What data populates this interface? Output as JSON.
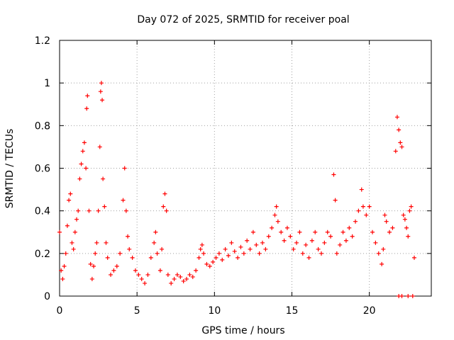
{
  "chart_data": {
    "type": "scatter",
    "title": "Day 072 of 2025, SRMTID for receiver poal",
    "xlabel": "GPS time / hours",
    "ylabel": "SRMTID / TECUs",
    "xlim": [
      0,
      24
    ],
    "ylim": [
      0,
      1.2
    ],
    "xticks": [
      0,
      5,
      10,
      15,
      20
    ],
    "yticks": [
      0,
      0.2,
      0.4,
      0.6,
      0.8,
      1,
      1.2
    ],
    "ytick_labels": [
      "0",
      "0.2",
      "0.4",
      "0.6",
      "0.8",
      "1",
      "1.2"
    ],
    "grid": true,
    "marker": "+",
    "marker_color": "#ff0000",
    "series": [
      {
        "name": "SRMTID",
        "points": [
          [
            0.0,
            0.3
          ],
          [
            0.1,
            0.12
          ],
          [
            0.2,
            0.08
          ],
          [
            0.3,
            0.14
          ],
          [
            0.4,
            0.2
          ],
          [
            0.5,
            0.33
          ],
          [
            0.6,
            0.45
          ],
          [
            0.7,
            0.48
          ],
          [
            0.8,
            0.25
          ],
          [
            0.9,
            0.22
          ],
          [
            1.0,
            0.3
          ],
          [
            1.1,
            0.36
          ],
          [
            1.2,
            0.4
          ],
          [
            1.3,
            0.55
          ],
          [
            1.4,
            0.62
          ],
          [
            1.5,
            0.68
          ],
          [
            1.6,
            0.72
          ],
          [
            1.7,
            0.6
          ],
          [
            1.75,
            0.88
          ],
          [
            1.8,
            0.94
          ],
          [
            1.9,
            0.4
          ],
          [
            2.0,
            0.15
          ],
          [
            2.1,
            0.08
          ],
          [
            2.2,
            0.14
          ],
          [
            2.3,
            0.2
          ],
          [
            2.4,
            0.25
          ],
          [
            2.5,
            0.4
          ],
          [
            2.6,
            0.7
          ],
          [
            2.65,
            0.96
          ],
          [
            2.7,
            1.0
          ],
          [
            2.75,
            0.92
          ],
          [
            2.8,
            0.55
          ],
          [
            2.9,
            0.42
          ],
          [
            3.0,
            0.25
          ],
          [
            3.1,
            0.18
          ],
          [
            3.3,
            0.1
          ],
          [
            3.5,
            0.12
          ],
          [
            3.7,
            0.14
          ],
          [
            3.9,
            0.2
          ],
          [
            4.1,
            0.45
          ],
          [
            4.2,
            0.6
          ],
          [
            4.3,
            0.4
          ],
          [
            4.4,
            0.28
          ],
          [
            4.5,
            0.22
          ],
          [
            4.7,
            0.18
          ],
          [
            4.9,
            0.12
          ],
          [
            5.1,
            0.1
          ],
          [
            5.3,
            0.08
          ],
          [
            5.5,
            0.06
          ],
          [
            5.7,
            0.1
          ],
          [
            5.9,
            0.18
          ],
          [
            6.1,
            0.25
          ],
          [
            6.2,
            0.3
          ],
          [
            6.3,
            0.2
          ],
          [
            6.5,
            0.12
          ],
          [
            6.6,
            0.22
          ],
          [
            6.7,
            0.42
          ],
          [
            6.8,
            0.48
          ],
          [
            6.9,
            0.4
          ],
          [
            7.0,
            0.1
          ],
          [
            7.2,
            0.06
          ],
          [
            7.4,
            0.08
          ],
          [
            7.6,
            0.1
          ],
          [
            7.8,
            0.09
          ],
          [
            8.0,
            0.07
          ],
          [
            8.2,
            0.08
          ],
          [
            8.4,
            0.1
          ],
          [
            8.6,
            0.09
          ],
          [
            8.8,
            0.12
          ],
          [
            9.0,
            0.18
          ],
          [
            9.1,
            0.22
          ],
          [
            9.2,
            0.24
          ],
          [
            9.3,
            0.2
          ],
          [
            9.5,
            0.15
          ],
          [
            9.7,
            0.14
          ],
          [
            9.9,
            0.16
          ],
          [
            10.1,
            0.18
          ],
          [
            10.3,
            0.2
          ],
          [
            10.5,
            0.17
          ],
          [
            10.7,
            0.22
          ],
          [
            10.9,
            0.19
          ],
          [
            11.1,
            0.25
          ],
          [
            11.3,
            0.21
          ],
          [
            11.5,
            0.18
          ],
          [
            11.7,
            0.23
          ],
          [
            11.9,
            0.2
          ],
          [
            12.1,
            0.26
          ],
          [
            12.3,
            0.22
          ],
          [
            12.5,
            0.3
          ],
          [
            12.7,
            0.24
          ],
          [
            12.9,
            0.2
          ],
          [
            13.1,
            0.25
          ],
          [
            13.3,
            0.22
          ],
          [
            13.5,
            0.28
          ],
          [
            13.7,
            0.32
          ],
          [
            13.9,
            0.38
          ],
          [
            14.0,
            0.42
          ],
          [
            14.1,
            0.35
          ],
          [
            14.3,
            0.3
          ],
          [
            14.5,
            0.26
          ],
          [
            14.7,
            0.32
          ],
          [
            14.9,
            0.28
          ],
          [
            15.1,
            0.22
          ],
          [
            15.3,
            0.25
          ],
          [
            15.5,
            0.3
          ],
          [
            15.7,
            0.2
          ],
          [
            15.9,
            0.24
          ],
          [
            16.1,
            0.18
          ],
          [
            16.3,
            0.26
          ],
          [
            16.5,
            0.3
          ],
          [
            16.7,
            0.22
          ],
          [
            16.9,
            0.2
          ],
          [
            17.1,
            0.25
          ],
          [
            17.3,
            0.3
          ],
          [
            17.5,
            0.28
          ],
          [
            17.7,
            0.57
          ],
          [
            17.8,
            0.45
          ],
          [
            17.9,
            0.2
          ],
          [
            18.1,
            0.24
          ],
          [
            18.3,
            0.3
          ],
          [
            18.5,
            0.26
          ],
          [
            18.7,
            0.32
          ],
          [
            18.9,
            0.28
          ],
          [
            19.1,
            0.35
          ],
          [
            19.3,
            0.4
          ],
          [
            19.5,
            0.5
          ],
          [
            19.6,
            0.42
          ],
          [
            19.8,
            0.38
          ],
          [
            20.0,
            0.42
          ],
          [
            20.2,
            0.3
          ],
          [
            20.4,
            0.25
          ],
          [
            20.6,
            0.2
          ],
          [
            20.8,
            0.15
          ],
          [
            20.9,
            0.22
          ],
          [
            21.0,
            0.38
          ],
          [
            21.1,
            0.35
          ],
          [
            21.3,
            0.3
          ],
          [
            21.5,
            0.32
          ],
          [
            21.7,
            0.68
          ],
          [
            21.8,
            0.84
          ],
          [
            21.9,
            0.78
          ],
          [
            22.0,
            0.72
          ],
          [
            22.1,
            0.7
          ],
          [
            22.2,
            0.38
          ],
          [
            22.3,
            0.36
          ],
          [
            22.4,
            0.32
          ],
          [
            22.5,
            0.28
          ],
          [
            22.6,
            0.4
          ],
          [
            22.7,
            0.42
          ],
          [
            22.9,
            0.18
          ],
          [
            21.9,
            0.0
          ],
          [
            22.1,
            0.0
          ],
          [
            22.5,
            0.0
          ],
          [
            22.8,
            0.0
          ]
        ]
      }
    ]
  }
}
